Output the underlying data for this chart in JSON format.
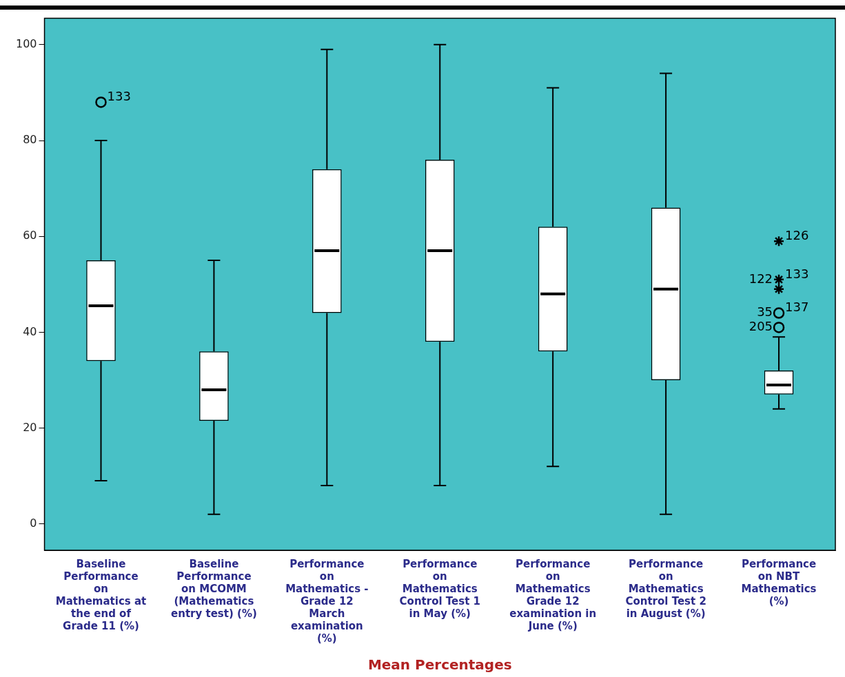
{
  "chart_data": {
    "type": "box",
    "xlabel": "Mean Percentages",
    "categories": [
      "Baseline Performance on Mathematics at the end of Grade 11 (%)",
      "Baseline Performance on MCOMM (Mathematics entry test) (%)",
      "Performance on Mathematics - Grade 12 March examination (%)",
      "Performance on Mathematics Control Test 1 in May (%)",
      "Performance on Mathematics Grade 12 examination in June (%)",
      "Performance on Mathematics Control Test 2 in August (%)",
      "Performance on NBT Mathematics (%)"
    ],
    "boxes": [
      {
        "low": 9,
        "q1": 34,
        "median": 45.5,
        "q3": 55,
        "high": 80
      },
      {
        "low": 2,
        "q1": 21.5,
        "median": 28,
        "q3": 36,
        "high": 55
      },
      {
        "low": 8,
        "q1": 44,
        "median": 57,
        "q3": 74,
        "high": 99
      },
      {
        "low": 8,
        "q1": 38,
        "median": 57,
        "q3": 76,
        "high": 100
      },
      {
        "low": 12,
        "q1": 36,
        "median": 48,
        "q3": 62,
        "high": 91
      },
      {
        "low": 2,
        "q1": 30,
        "median": 49,
        "q3": 66,
        "high": 94
      },
      {
        "low": 24,
        "q1": 27,
        "median": 29,
        "q3": 32,
        "high": 39
      }
    ],
    "series": [
      {
        "type": "scatter",
        "marker": "cross",
        "color": "#000000",
        "x": [
          "Performance on NBT Mathematics (%)",
          "Performance on NBT Mathematics (%)",
          "Performance on NBT Mathematics (%)"
        ],
        "values": [
          59,
          51,
          49
        ]
      },
      {
        "type": "scatter",
        "color": "#000000",
        "x": [
          "Baseline Performance on Mathematics at the end of Grade 11 (%)",
          "Performance on NBT Mathematics (%)",
          "Performance on NBT Mathematics (%)"
        ],
        "values": [
          88,
          41,
          44
        ]
      }
    ],
    "ylim": [
      -5.5,
      105.5
    ],
    "yticks": [
      0,
      20,
      40,
      60,
      80,
      100
    ],
    "grid": false,
    "legend": false,
    "marker": "circle",
    "annotations": [
      {
        "text": "133",
        "x": "Baseline Performance on Mathematics at the end of Grade 11 (%)",
        "y": 88
      },
      {
        "text": "126",
        "x": "Performance on NBT Mathematics (%)",
        "y": 59
      },
      {
        "text": "122",
        "x": "Performance on NBT Mathematics (%)",
        "y": 51
      },
      {
        "text": "133",
        "x": "Performance on NBT Mathematics (%)",
        "y": 51
      },
      {
        "text": "35",
        "x": "Performance on NBT Mathematics (%)",
        "y": 44
      },
      {
        "text": "137",
        "x": "Performance on NBT Mathematics (%)",
        "y": 44
      },
      {
        "text": "205",
        "x": "Performance on NBT Mathematics (%)",
        "y": 41
      }
    ]
  }
}
